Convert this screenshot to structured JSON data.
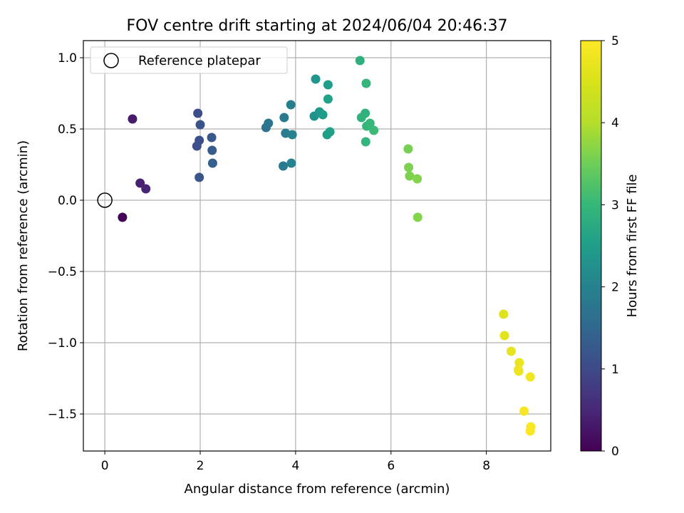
{
  "chart_data": {
    "type": "scatter",
    "title": "FOV centre drift starting at 2024/06/04 20:46:37",
    "xlabel": "Angular distance from reference (arcmin)",
    "ylabel": "Rotation from reference (arcmin)",
    "xlim": [
      -0.45,
      9.35
    ],
    "ylim": [
      -1.76,
      1.12
    ],
    "x_ticks": [
      0,
      2,
      4,
      6,
      8
    ],
    "x_tick_labels": [
      "0",
      "2",
      "4",
      "6",
      "8"
    ],
    "y_ticks": [
      -1.5,
      -1.0,
      -0.5,
      0.0,
      0.5,
      1.0
    ],
    "y_tick_labels": [
      "−1.5",
      "−1.0",
      "−0.5",
      "0.0",
      "0.5",
      "1.0"
    ],
    "grid": true,
    "legend": {
      "placement": "top-left",
      "entries": [
        "Reference platepar"
      ]
    },
    "reference_point": {
      "x": 0,
      "y": 0,
      "label": "Reference platepar"
    },
    "colorbar": {
      "label": "Hours from first FF file",
      "range": [
        0,
        5
      ],
      "ticks": [
        0,
        1,
        2,
        3,
        4,
        5
      ],
      "tick_labels": [
        "0",
        "1",
        "2",
        "3",
        "4",
        "5"
      ],
      "colormap": "viridis"
    },
    "points": [
      {
        "x": 0.37,
        "y": -0.12,
        "hours": 0.05
      },
      {
        "x": 0.58,
        "y": 0.57,
        "hours": 0.35
      },
      {
        "x": 0.74,
        "y": 0.12,
        "hours": 0.4
      },
      {
        "x": 0.86,
        "y": 0.08,
        "hours": 0.45
      },
      {
        "x": 1.93,
        "y": 0.38,
        "hours": 1.1
      },
      {
        "x": 1.95,
        "y": 0.61,
        "hours": 1.05
      },
      {
        "x": 1.98,
        "y": 0.42,
        "hours": 1.1
      },
      {
        "x": 2.0,
        "y": 0.53,
        "hours": 1.15
      },
      {
        "x": 1.98,
        "y": 0.16,
        "hours": 1.2
      },
      {
        "x": 2.24,
        "y": 0.44,
        "hours": 1.25
      },
      {
        "x": 2.25,
        "y": 0.35,
        "hours": 1.3
      },
      {
        "x": 2.26,
        "y": 0.26,
        "hours": 1.35
      },
      {
        "x": 3.38,
        "y": 0.51,
        "hours": 1.7
      },
      {
        "x": 3.43,
        "y": 0.54,
        "hours": 1.75
      },
      {
        "x": 3.74,
        "y": 0.24,
        "hours": 1.85
      },
      {
        "x": 3.76,
        "y": 0.58,
        "hours": 1.85
      },
      {
        "x": 3.79,
        "y": 0.47,
        "hours": 1.9
      },
      {
        "x": 3.9,
        "y": 0.67,
        "hours": 1.95
      },
      {
        "x": 3.93,
        "y": 0.46,
        "hours": 2.0
      },
      {
        "x": 3.91,
        "y": 0.26,
        "hours": 2.0
      },
      {
        "x": 4.39,
        "y": 0.59,
        "hours": 2.3
      },
      {
        "x": 4.42,
        "y": 0.85,
        "hours": 2.35
      },
      {
        "x": 4.5,
        "y": 0.62,
        "hours": 2.4
      },
      {
        "x": 4.57,
        "y": 0.6,
        "hours": 2.45
      },
      {
        "x": 4.68,
        "y": 0.81,
        "hours": 2.5
      },
      {
        "x": 4.68,
        "y": 0.71,
        "hours": 2.55
      },
      {
        "x": 4.72,
        "y": 0.48,
        "hours": 2.55
      },
      {
        "x": 4.66,
        "y": 0.46,
        "hours": 2.5
      },
      {
        "x": 5.35,
        "y": 0.98,
        "hours": 2.85
      },
      {
        "x": 5.38,
        "y": 0.58,
        "hours": 2.9
      },
      {
        "x": 5.46,
        "y": 0.61,
        "hours": 2.9
      },
      {
        "x": 5.48,
        "y": 0.82,
        "hours": 2.95
      },
      {
        "x": 5.49,
        "y": 0.52,
        "hours": 2.95
      },
      {
        "x": 5.56,
        "y": 0.54,
        "hours": 3.0
      },
      {
        "x": 5.64,
        "y": 0.49,
        "hours": 3.05
      },
      {
        "x": 5.47,
        "y": 0.41,
        "hours": 2.95
      },
      {
        "x": 6.36,
        "y": 0.36,
        "hours": 3.55
      },
      {
        "x": 6.37,
        "y": 0.23,
        "hours": 3.6
      },
      {
        "x": 6.39,
        "y": 0.17,
        "hours": 3.6
      },
      {
        "x": 6.55,
        "y": 0.15,
        "hours": 3.65
      },
      {
        "x": 6.56,
        "y": -0.12,
        "hours": 3.65
      },
      {
        "x": 8.36,
        "y": -0.8,
        "hours": 4.6
      },
      {
        "x": 8.38,
        "y": -0.95,
        "hours": 4.65
      },
      {
        "x": 8.52,
        "y": -1.06,
        "hours": 4.7
      },
      {
        "x": 8.69,
        "y": -1.14,
        "hours": 4.75
      },
      {
        "x": 8.67,
        "y": -1.19,
        "hours": 4.8
      },
      {
        "x": 8.68,
        "y": -1.2,
        "hours": 4.8
      },
      {
        "x": 8.92,
        "y": -1.24,
        "hours": 4.85
      },
      {
        "x": 8.79,
        "y": -1.48,
        "hours": 4.9
      },
      {
        "x": 8.93,
        "y": -1.59,
        "hours": 4.95
      },
      {
        "x": 8.92,
        "y": -1.62,
        "hours": 5.0
      }
    ]
  }
}
